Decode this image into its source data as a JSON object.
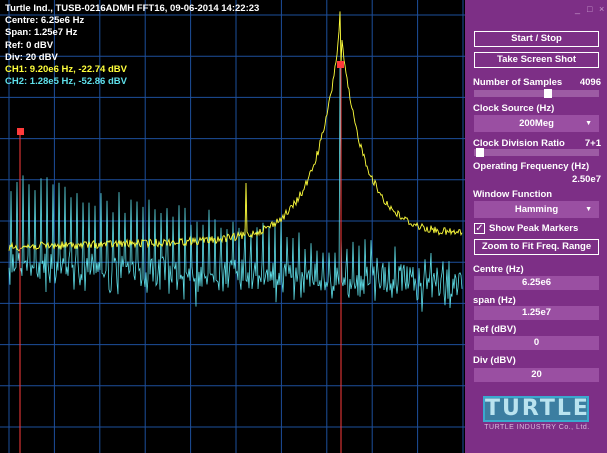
{
  "readout": {
    "title": "Turtle Ind., TUSB-0216ADMH FFT16, 09-06-2014 14:22:23",
    "centre": "Centre: 6.25e6 Hz",
    "span": "Span: 1.25e7 Hz",
    "ref": "Ref: 0 dBV",
    "div": "Div: 20 dBV",
    "ch1": "CH1: 9.20e6 Hz, -22.74 dBV",
    "ch2": "CH2: 1.28e5 Hz, -52.86 dBV"
  },
  "colors": {
    "ch1": "#ffff3c",
    "ch2": "#5fe0ea",
    "grid": "#1d4f9c",
    "marker": "#ff3b3b",
    "panel": "#7d2f86"
  },
  "window_controls": {
    "minimize": "_",
    "maximize": "□",
    "close": "×"
  },
  "panel": {
    "start_stop": "Start / Stop",
    "screenshot": "Take Screen Shot",
    "num_samples_label": "Number of Samples",
    "num_samples_value": "4096",
    "num_samples_level": 0.6,
    "clock_source_label": "Clock Source (Hz)",
    "clock_source_value": "200Meg",
    "clock_div_label": "Clock Division Ratio",
    "clock_div_value": "7+1",
    "clock_div_level": 0.02,
    "op_freq_label": "Operating Frequency (Hz)",
    "op_freq_value": "2.50e7",
    "window_label": "Window Function",
    "window_value": "Hamming",
    "peak_markers_label": "Show Peak Markers",
    "peak_markers_checked": true,
    "zoom_button": "Zoom to Fit Freq. Range",
    "centre_label": "Centre (Hz)",
    "centre_value": "6.25e6",
    "span_label": "span (Hz)",
    "span_value": "1.25e7",
    "ref_label": "Ref (dBV)",
    "ref_value": "0",
    "div_label": "Div (dBV)",
    "div_value": "20"
  },
  "logo": {
    "word": "TURTLE",
    "sub": "TURTLE INDUSTRY Co., Ltd."
  }
}
